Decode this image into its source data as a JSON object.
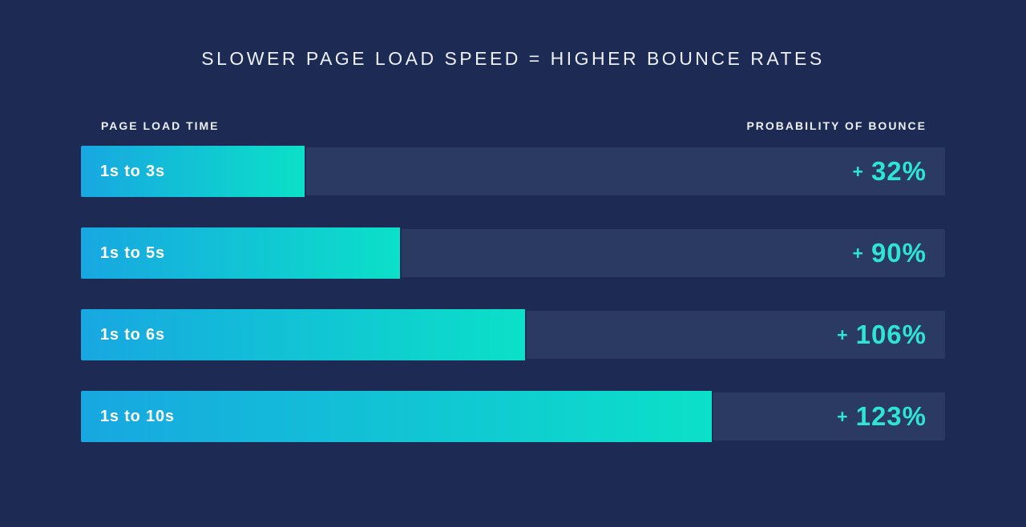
{
  "colors": {
    "background": "#1c2a54",
    "track": "#2b3a62",
    "bar_start": "#18a7e1",
    "bar_end": "#0be0c8",
    "value_text": "#2ee4d2",
    "label_text": "#ffffff",
    "title_text": "#edf0f7"
  },
  "chart_data": {
    "type": "bar",
    "orientation": "horizontal",
    "title": "SLOWER PAGE LOAD SPEED = HIGHER BOUNCE RATES",
    "ylabel": "PAGE LOAD TIME",
    "xlabel": "PROBABILITY OF BOUNCE",
    "categories": [
      "1s to 3s",
      "1s to 5s",
      "1s to 6s",
      "1s to 10s"
    ],
    "values": [
      32,
      90,
      106,
      123
    ],
    "value_unit": "%",
    "value_labels": [
      "+ 32%",
      "+ 90%",
      "+ 106%",
      "+ 123%"
    ],
    "bar_fill_pct": [
      26.1,
      37.1,
      51.6,
      73.2
    ],
    "grid": false,
    "legend": false,
    "rows": [
      {
        "label": "1s to 3s",
        "plus": "+",
        "value": "32%"
      },
      {
        "label": "1s to 5s",
        "plus": "+",
        "value": "90%"
      },
      {
        "label": "1s to 6s",
        "plus": "+",
        "value": "106%"
      },
      {
        "label": "1s to 10s",
        "plus": "+",
        "value": "123%"
      }
    ]
  }
}
